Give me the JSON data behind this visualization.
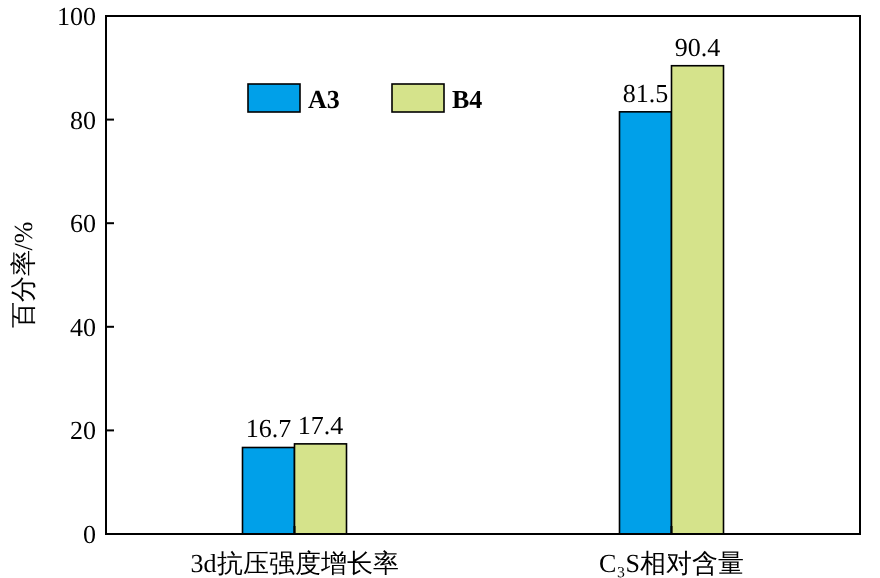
{
  "chart_data": {
    "type": "bar",
    "ylabel": "百分率/%",
    "categories": [
      "3d抗压强度增长率",
      "C₃S相对含量"
    ],
    "series": [
      {
        "name": "A3",
        "color": "#00a0e9",
        "values": [
          16.7,
          81.5
        ]
      },
      {
        "name": "B4",
        "color": "#d5e38b",
        "values": [
          17.4,
          90.4
        ]
      }
    ],
    "ylim": [
      0,
      100
    ],
    "yticks": [
      0,
      20,
      40,
      60,
      80,
      100
    ],
    "data_labels": true,
    "legend": "top",
    "grid": false
  }
}
